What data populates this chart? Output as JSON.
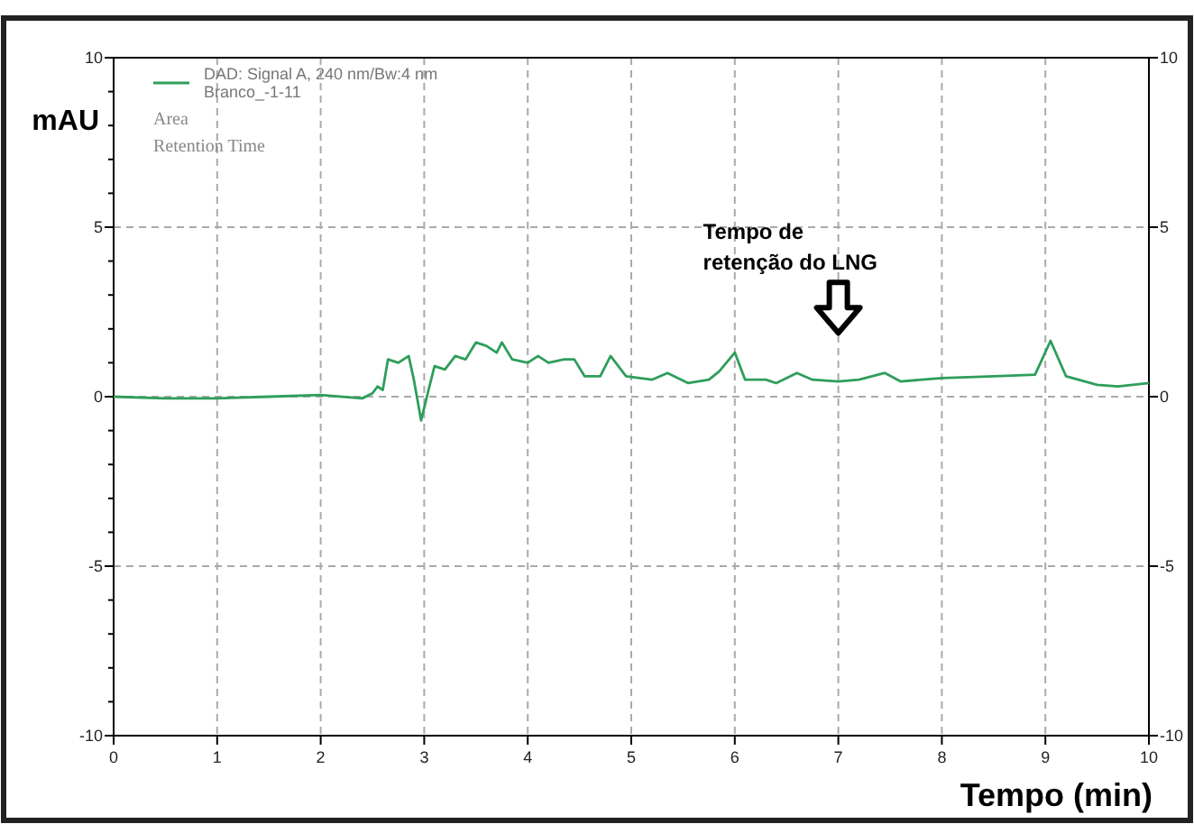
{
  "chart_data": {
    "type": "line",
    "xlabel": "Tempo (min)",
    "ylabel": "mAU",
    "x": [
      0,
      0.5,
      1,
      1.5,
      2,
      2.4,
      2.5,
      2.55,
      2.6,
      2.65,
      2.75,
      2.85,
      2.9,
      2.97,
      3.05,
      3.1,
      3.2,
      3.3,
      3.4,
      3.5,
      3.6,
      3.7,
      3.75,
      3.85,
      4,
      4.1,
      4.2,
      4.35,
      4.45,
      4.55,
      4.7,
      4.8,
      4.95,
      5.2,
      5.35,
      5.55,
      5.75,
      5.85,
      6,
      6.1,
      6.3,
      6.4,
      6.6,
      6.75,
      7,
      7.2,
      7.45,
      7.6,
      8,
      8.5,
      8.9,
      9.05,
      9.2,
      9.5,
      9.7,
      10
    ],
    "series": [
      {
        "name": "DAD: Signal A, 240 nm/Bw:4 nm\nBranco_-1-11",
        "color": "#2e9e5b",
        "values": [
          0,
          -0.05,
          -0.05,
          0,
          0.05,
          -0.05,
          0.1,
          0.3,
          0.2,
          1.1,
          1,
          1.2,
          0.5,
          -0.7,
          0.3,
          0.9,
          0.8,
          1.2,
          1.1,
          1.6,
          1.5,
          1.3,
          1.6,
          1.1,
          1,
          1.2,
          1,
          1.1,
          1.1,
          0.6,
          0.6,
          1.2,
          0.6,
          0.5,
          0.7,
          0.4,
          0.5,
          0.75,
          1.3,
          0.5,
          0.5,
          0.4,
          0.7,
          0.5,
          0.45,
          0.5,
          0.7,
          0.45,
          0.55,
          0.6,
          0.65,
          1.65,
          0.6,
          0.35,
          0.3,
          0.4
        ]
      }
    ],
    "xlim": [
      0,
      10
    ],
    "xticks": [
      0,
      1,
      2,
      3,
      4,
      5,
      6,
      7,
      8,
      9,
      10
    ],
    "ylim": [
      -10,
      10
    ],
    "yticks": [
      -10,
      {
        "value": -9,
        "label": null
      },
      {
        "value": -8,
        "label": null
      },
      {
        "value": -7,
        "label": null
      },
      {
        "value": -6,
        "label": null
      },
      -5,
      {
        "value": -4,
        "label": null
      },
      {
        "value": -3,
        "label": null
      },
      {
        "value": -2,
        "label": null
      },
      {
        "value": -1,
        "label": null
      },
      0,
      {
        "value": 1,
        "label": null
      },
      {
        "value": 2,
        "label": null
      },
      {
        "value": 3,
        "label": null
      },
      {
        "value": 4,
        "label": null
      },
      5,
      {
        "value": 6,
        "label": null
      },
      {
        "value": 7,
        "label": null
      },
      {
        "value": 8,
        "label": null
      },
      {
        "value": 9,
        "label": null
      },
      10
    ],
    "y2lim": [
      -10,
      10
    ],
    "y2ticks": [
      -10,
      -5,
      0,
      5,
      10
    ],
    "grid": true,
    "legend": "top left",
    "line_style": "solid",
    "annotations": [
      "Area",
      "Retention Time",
      "Tempo de retenção do LNG"
    ]
  }
}
